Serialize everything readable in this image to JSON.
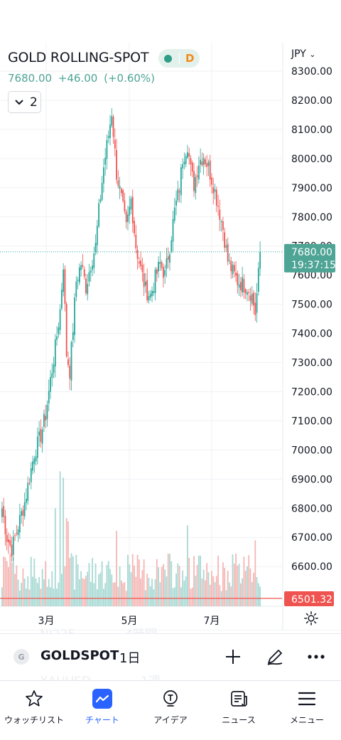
{
  "chart_header": {
    "symbol_title": "GOLD ROLLING-SPOT",
    "status_letter": "D",
    "last_price": "7680.00",
    "change": "+46.00",
    "change_pct": "(+0.60%)",
    "collapse_count": "2",
    "currency": "JPY"
  },
  "price_scale": {
    "labels": [
      "8300.00",
      "8200.00",
      "8100.00",
      "8000.00",
      "7900.00",
      "7800.00",
      "7700.00",
      "7600.00",
      "7500.00",
      "7400.00",
      "7300.00",
      "7200.00",
      "7100.00",
      "7000.00",
      "6900.00",
      "6800.00",
      "6700.00",
      "6600.00"
    ],
    "current_price_label": "7680.00",
    "countdown": "19:37:15",
    "volume_label": "6501.32"
  },
  "time_scale": {
    "labels": [
      "3月",
      "5月",
      "7月"
    ]
  },
  "background_ghost": {
    "row1": [
      "NI225",
      "4時間"
    ],
    "row2": [
      "XAUUSD",
      "1週"
    ]
  },
  "symbol_bar": {
    "logo": "G",
    "symbol": "GOLDSPOT",
    "interval": "1日"
  },
  "bottom_nav": [
    {
      "label": "ウォッチリスト",
      "icon": "star-icon"
    },
    {
      "label": "チャート",
      "icon": "chart-icon",
      "active": true
    },
    {
      "label": "アイデア",
      "icon": "lightbulb-icon"
    },
    {
      "label": "ニュース",
      "icon": "newspaper-icon"
    },
    {
      "label": "メニュー",
      "icon": "hamburger-menu-icon"
    }
  ],
  "colors": {
    "up": "#26a69a",
    "down": "#ef5350",
    "accent": "#2962ff",
    "last_price_bg": "#4ea495"
  },
  "chart_data": {
    "type": "candlestick",
    "symbol": "GOLD ROLLING-SPOT",
    "interval": "1日",
    "currency": "JPY",
    "y_range": [
      6500,
      8340
    ],
    "anchors": [
      [
        0,
        6800
      ],
      [
        3,
        6700
      ],
      [
        6,
        6660
      ],
      [
        9,
        6720
      ],
      [
        14,
        6820
      ],
      [
        20,
        6990
      ],
      [
        24,
        7050
      ],
      [
        27,
        7120
      ],
      [
        30,
        7240
      ],
      [
        33,
        7350
      ],
      [
        36,
        7480
      ],
      [
        38,
        7640
      ],
      [
        40,
        7330
      ],
      [
        42,
        7270
      ],
      [
        44,
        7420
      ],
      [
        46,
        7580
      ],
      [
        49,
        7640
      ],
      [
        52,
        7560
      ],
      [
        55,
        7640
      ],
      [
        58,
        7700
      ],
      [
        60,
        7820
      ],
      [
        63,
        7970
      ],
      [
        66,
        8080
      ],
      [
        68,
        8160
      ],
      [
        71,
        7950
      ],
      [
        74,
        7860
      ],
      [
        77,
        7760
      ],
      [
        80,
        7860
      ],
      [
        83,
        7700
      ],
      [
        86,
        7620
      ],
      [
        89,
        7550
      ],
      [
        92,
        7530
      ],
      [
        95,
        7590
      ],
      [
        98,
        7640
      ],
      [
        101,
        7600
      ],
      [
        104,
        7700
      ],
      [
        107,
        7820
      ],
      [
        110,
        7900
      ],
      [
        112,
        8000
      ],
      [
        115,
        8050
      ],
      [
        117,
        7960
      ],
      [
        119,
        7910
      ],
      [
        122,
        7990
      ],
      [
        125,
        8010
      ],
      [
        128,
        7970
      ],
      [
        131,
        7910
      ],
      [
        134,
        7840
      ],
      [
        137,
        7760
      ],
      [
        140,
        7650
      ],
      [
        143,
        7610
      ],
      [
        146,
        7580
      ],
      [
        149,
        7570
      ],
      [
        152,
        7560
      ],
      [
        155,
        7530
      ],
      [
        157,
        7470
      ],
      [
        159,
        7600
      ],
      [
        160,
        7680
      ]
    ]
  }
}
